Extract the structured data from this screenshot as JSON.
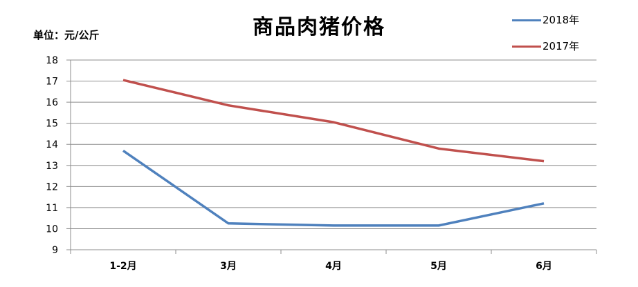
{
  "chart_data": {
    "type": "line",
    "title": "商品肉猪价格",
    "unit_label": "单位：元/公斤",
    "categories": [
      "1-2月",
      "3月",
      "4月",
      "5月",
      "6月"
    ],
    "series": [
      {
        "name": "2018年",
        "color": "#4f81bd",
        "values": [
          13.7,
          10.25,
          10.15,
          10.15,
          11.2
        ]
      },
      {
        "name": "2017年",
        "color": "#c0504d",
        "values": [
          17.05,
          15.85,
          15.05,
          13.8,
          13.2
        ]
      }
    ],
    "ylim": [
      9,
      18
    ],
    "yticks": [
      9,
      10,
      11,
      12,
      13,
      14,
      15,
      16,
      17,
      18
    ],
    "grid": true,
    "legend_position": "top-right"
  }
}
